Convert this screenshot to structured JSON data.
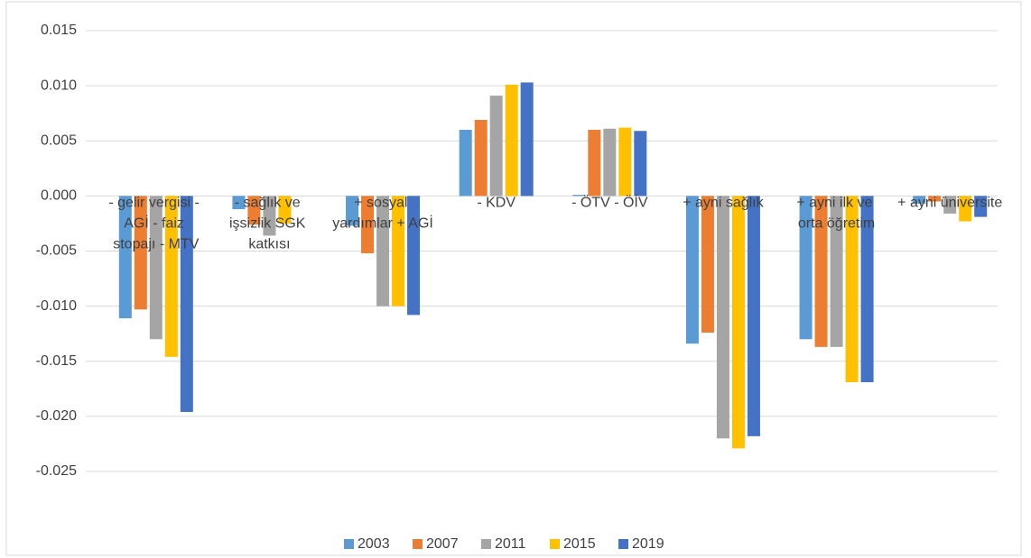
{
  "chart_data": {
    "type": "bar",
    "categories": [
      "- gelir vergisi - AGİ - faiz stopajı - MTV",
      "- sağlık ve işsizlik SGK katkısı",
      "+ sosyal yardımlar + AGİ",
      "- KDV",
      "- ÖTV - ÖİV",
      "+ ayni sağlık",
      "+ ayni ilk ve orta öğretim",
      "+ ayni üniversite"
    ],
    "series": [
      {
        "name": "2003",
        "color": "#5b9bd5",
        "values": [
          -0.0111,
          -0.0012,
          -0.0027,
          0.006,
          0.0001,
          -0.0134,
          -0.013,
          -0.0007
        ]
      },
      {
        "name": "2007",
        "color": "#ed7d31",
        "values": [
          -0.0103,
          -0.0026,
          -0.0052,
          0.0069,
          0.006,
          -0.0124,
          -0.0137,
          -0.0005
        ]
      },
      {
        "name": "2011",
        "color": "#a5a5a5",
        "values": [
          -0.013,
          -0.0036,
          -0.01,
          0.0091,
          0.0061,
          -0.022,
          -0.0137,
          -0.0016
        ]
      },
      {
        "name": "2015",
        "color": "#ffc000",
        "values": [
          -0.0146,
          -0.0025,
          -0.01,
          0.0101,
          0.0062,
          -0.0229,
          -0.0169,
          -0.0023
        ]
      },
      {
        "name": "2019",
        "color": "#4472c4",
        "values": [
          -0.0196,
          0,
          -0.0108,
          0.0103,
          0.0059,
          -0.0218,
          -0.0169,
          -0.0019
        ]
      }
    ],
    "ylim": [
      -0.025,
      0.015
    ],
    "yticks": [
      {
        "value": -0.025,
        "label": "-0.025"
      },
      {
        "value": -0.02,
        "label": "-0.020"
      },
      {
        "value": -0.015,
        "label": "-0.015"
      },
      {
        "value": -0.01,
        "label": "-0.010"
      },
      {
        "value": -0.005,
        "label": "-0.005"
      },
      {
        "value": 0,
        "label": "0.000"
      },
      {
        "value": 0.005,
        "label": "0.005"
      },
      {
        "value": 0.01,
        "label": "0.010"
      },
      {
        "value": 0.015,
        "label": "0.015"
      }
    ],
    "grid": true,
    "legend": "bottom"
  }
}
